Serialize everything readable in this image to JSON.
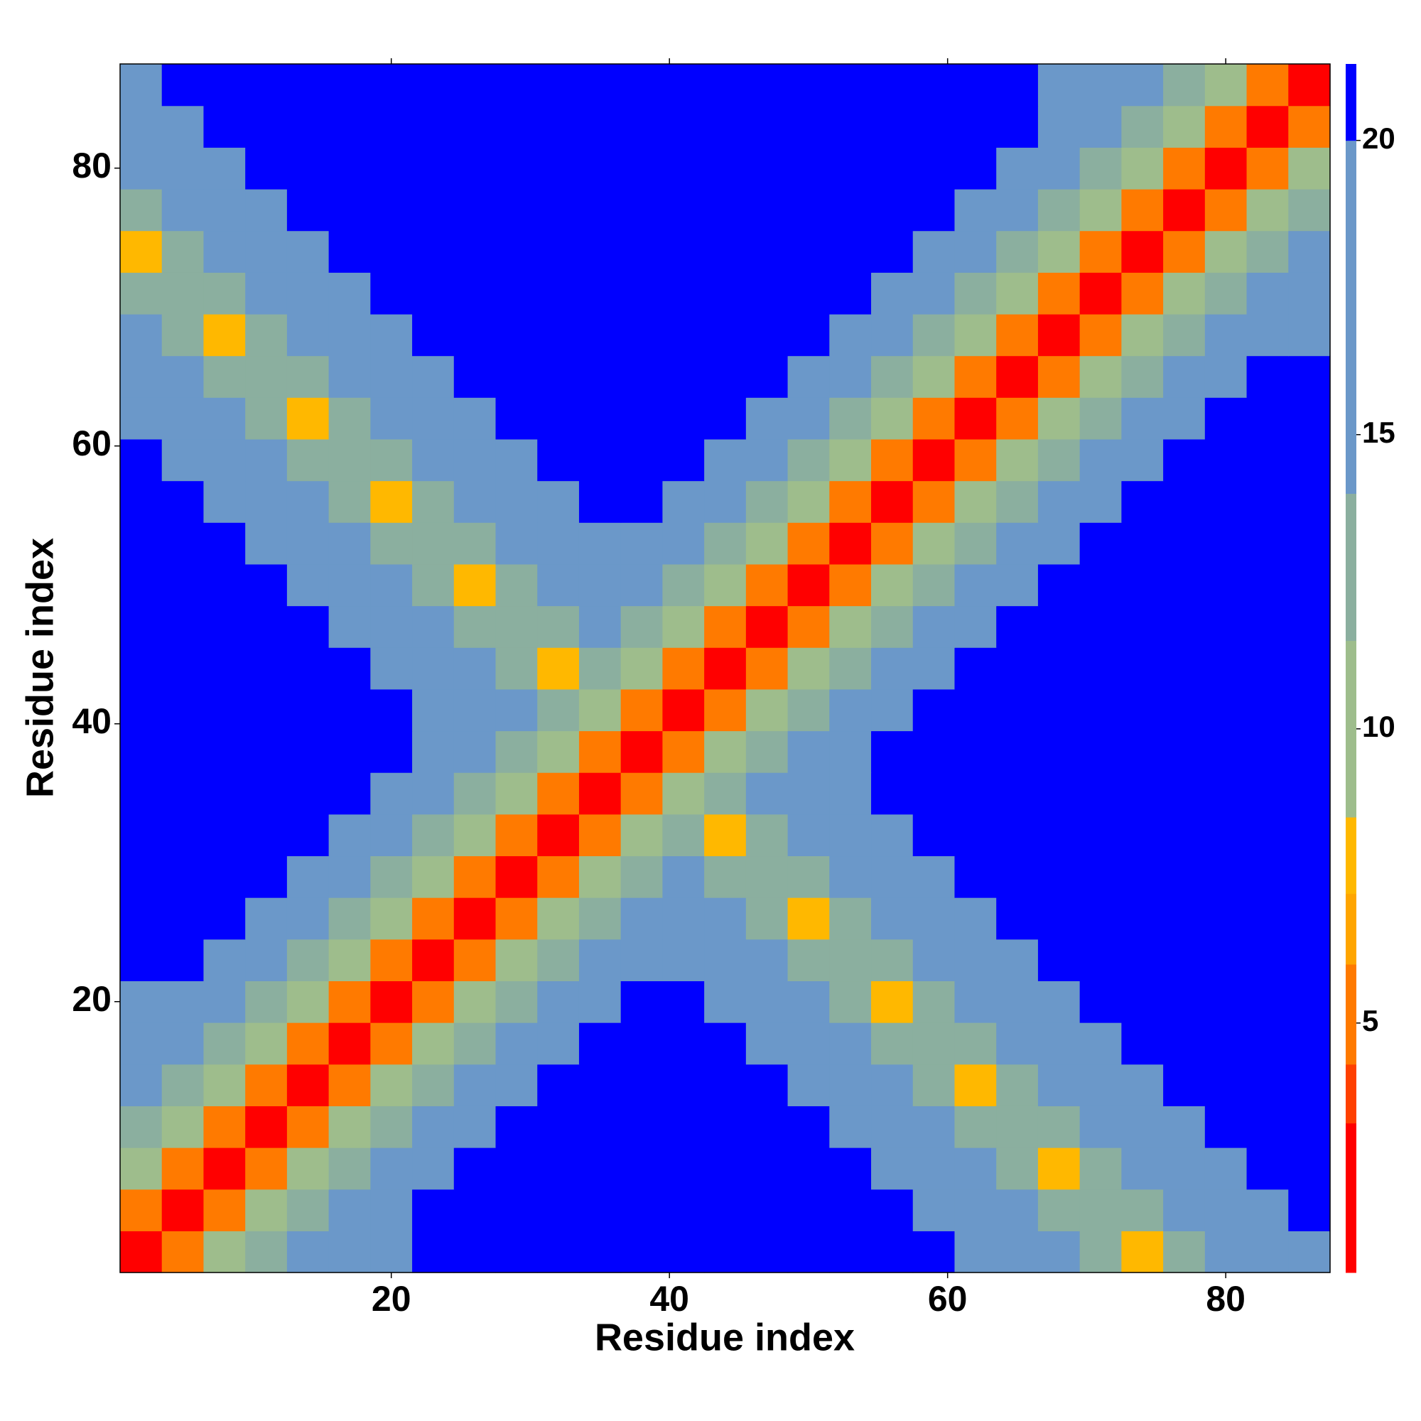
{
  "chart_data": {
    "type": "heatmap",
    "xlabel": "Residue index",
    "ylabel": "Residue index",
    "x": [
      2,
      5,
      8,
      11,
      14,
      17,
      20,
      23,
      26,
      29,
      32,
      35,
      38,
      41,
      44,
      47,
      50,
      53,
      56,
      59,
      62,
      65,
      68,
      71,
      74,
      77,
      80,
      83,
      86
    ],
    "y": [
      2,
      5,
      8,
      11,
      14,
      17,
      20,
      23,
      26,
      29,
      32,
      35,
      38,
      41,
      44,
      47,
      50,
      53,
      56,
      59,
      62,
      65,
      68,
      71,
      74,
      77,
      80,
      83,
      86
    ],
    "z": [
      [
        1.5,
        5,
        9.5,
        12,
        15,
        15,
        15,
        22,
        22,
        22,
        22,
        22,
        22,
        22,
        22,
        22,
        22,
        22,
        22,
        22,
        19,
        17,
        15,
        13,
        8,
        13,
        15,
        17,
        19
      ],
      [
        5,
        1.5,
        5,
        9.5,
        12,
        15,
        15,
        22,
        22,
        22,
        22,
        22,
        22,
        22,
        22,
        22,
        22,
        22,
        22,
        19,
        17,
        15,
        13,
        12,
        13,
        15,
        17,
        19,
        22
      ],
      [
        9.5,
        5,
        1.5,
        5,
        9.5,
        12,
        15,
        18,
        22,
        22,
        22,
        22,
        22,
        22,
        22,
        22,
        22,
        22,
        19,
        17,
        15,
        13,
        8,
        13,
        15,
        17,
        19,
        22,
        22
      ],
      [
        12,
        9.5,
        5,
        1.5,
        5,
        9.5,
        12,
        15,
        18,
        22,
        22,
        22,
        22,
        22,
        22,
        22,
        22,
        19,
        17,
        15,
        13,
        12,
        13,
        15,
        17,
        19,
        22,
        22,
        22
      ],
      [
        15,
        12,
        9.5,
        5,
        1.5,
        5,
        9.5,
        12,
        15,
        18,
        22,
        22,
        22,
        22,
        22,
        22,
        19,
        17,
        15,
        13,
        8,
        13,
        15,
        17,
        19,
        22,
        22,
        22,
        22
      ],
      [
        15,
        15,
        12,
        9.5,
        5,
        1.5,
        5,
        9.5,
        12,
        15,
        18,
        22,
        22,
        22,
        22,
        19,
        17,
        15,
        13,
        12,
        13,
        15,
        17,
        19,
        22,
        22,
        22,
        22,
        22
      ],
      [
        15,
        15,
        15,
        12,
        9.5,
        5,
        1.5,
        5,
        9.5,
        12,
        15,
        18,
        22,
        22,
        19,
        17,
        15,
        13,
        8,
        13,
        15,
        17,
        19,
        22,
        22,
        22,
        22,
        22,
        22
      ],
      [
        22,
        22,
        18,
        15,
        12,
        9.5,
        5,
        1.5,
        5,
        9.5,
        12,
        15,
        18,
        19,
        17,
        15,
        13,
        12,
        13,
        15,
        17,
        19,
        22,
        22,
        22,
        22,
        22,
        22,
        22
      ],
      [
        22,
        22,
        22,
        18,
        15,
        12,
        9.5,
        5,
        1.5,
        5,
        9.5,
        12,
        15,
        17,
        15,
        13,
        8,
        13,
        15,
        17,
        19,
        22,
        22,
        22,
        22,
        22,
        22,
        22,
        22
      ],
      [
        22,
        22,
        22,
        22,
        18,
        15,
        12,
        9.5,
        5,
        1.5,
        5,
        9.5,
        12,
        15,
        13,
        12,
        13,
        15,
        17,
        19,
        22,
        22,
        22,
        22,
        22,
        22,
        22,
        22,
        22
      ],
      [
        22,
        22,
        22,
        22,
        22,
        18,
        15,
        12,
        9.5,
        5,
        1.5,
        5,
        9.5,
        12,
        8,
        13,
        15,
        17,
        19,
        22,
        22,
        22,
        22,
        22,
        22,
        22,
        22,
        22,
        22
      ],
      [
        22,
        22,
        22,
        22,
        22,
        22,
        18,
        15,
        12,
        9.5,
        5,
        1.5,
        5,
        9.5,
        12,
        15,
        17,
        19,
        22,
        22,
        22,
        22,
        22,
        22,
        22,
        22,
        22,
        22,
        22
      ],
      [
        22,
        22,
        22,
        22,
        22,
        22,
        22,
        18,
        15,
        12,
        9.5,
        5,
        1.5,
        5,
        9.5,
        12,
        15,
        18,
        22,
        22,
        22,
        22,
        22,
        22,
        22,
        22,
        22,
        22,
        22
      ],
      [
        22,
        22,
        22,
        22,
        22,
        22,
        22,
        19,
        17,
        15,
        12,
        9.5,
        5,
        1.5,
        5,
        9.5,
        12,
        15,
        18,
        22,
        22,
        22,
        22,
        22,
        22,
        22,
        22,
        22,
        22
      ],
      [
        22,
        22,
        22,
        22,
        22,
        22,
        19,
        17,
        15,
        13,
        8,
        12,
        9.5,
        5,
        1.5,
        5,
        9.5,
        12,
        15,
        18,
        22,
        22,
        22,
        22,
        22,
        22,
        22,
        22,
        22
      ],
      [
        22,
        22,
        22,
        22,
        22,
        19,
        17,
        15,
        13,
        12,
        13,
        15,
        12,
        9.5,
        5,
        1.5,
        5,
        9.5,
        12,
        15,
        18,
        22,
        22,
        22,
        22,
        22,
        22,
        22,
        22
      ],
      [
        22,
        22,
        22,
        22,
        19,
        17,
        15,
        13,
        8,
        13,
        15,
        17,
        15,
        12,
        9.5,
        5,
        1.5,
        5,
        9.5,
        12,
        15,
        18,
        22,
        22,
        22,
        22,
        22,
        22,
        22
      ],
      [
        22,
        22,
        22,
        19,
        17,
        15,
        13,
        12,
        13,
        15,
        17,
        19,
        18,
        15,
        12,
        9.5,
        5,
        1.5,
        5,
        9.5,
        12,
        15,
        18,
        22,
        22,
        22,
        22,
        22,
        22
      ],
      [
        22,
        22,
        19,
        17,
        15,
        13,
        8,
        13,
        15,
        17,
        19,
        22,
        22,
        18,
        15,
        12,
        9.5,
        5,
        1.5,
        5,
        9.5,
        12,
        15,
        18,
        22,
        22,
        22,
        22,
        22
      ],
      [
        22,
        19,
        17,
        15,
        13,
        12,
        13,
        15,
        17,
        19,
        22,
        22,
        22,
        22,
        18,
        15,
        12,
        9.5,
        5,
        1.5,
        5,
        9.5,
        12,
        15,
        18,
        22,
        22,
        22,
        22
      ],
      [
        19,
        17,
        15,
        13,
        8,
        13,
        15,
        17,
        19,
        22,
        22,
        22,
        22,
        22,
        22,
        18,
        15,
        12,
        9.5,
        5,
        1.5,
        5,
        9.5,
        12,
        15,
        18,
        22,
        22,
        22
      ],
      [
        17,
        15,
        13,
        12,
        13,
        15,
        17,
        19,
        22,
        22,
        22,
        22,
        22,
        22,
        22,
        22,
        18,
        15,
        12,
        9.5,
        5,
        1.5,
        5,
        9.5,
        12,
        15,
        18,
        22,
        22
      ],
      [
        15,
        13,
        8,
        13,
        15,
        17,
        19,
        22,
        22,
        22,
        22,
        22,
        22,
        22,
        22,
        22,
        22,
        18,
        15,
        12,
        9.5,
        5,
        1.5,
        5,
        9.5,
        12,
        15,
        15,
        15
      ],
      [
        13,
        12,
        13,
        15,
        17,
        19,
        22,
        22,
        22,
        22,
        22,
        22,
        22,
        22,
        22,
        22,
        22,
        22,
        18,
        15,
        12,
        9.5,
        5,
        1.5,
        5,
        9.5,
        12,
        15,
        15
      ],
      [
        8,
        13,
        15,
        17,
        19,
        22,
        22,
        22,
        22,
        22,
        22,
        22,
        22,
        22,
        22,
        22,
        22,
        22,
        22,
        18,
        15,
        12,
        9.5,
        5,
        1.5,
        5,
        9.5,
        12,
        15
      ],
      [
        13,
        15,
        17,
        19,
        22,
        22,
        22,
        22,
        22,
        22,
        22,
        22,
        22,
        22,
        22,
        22,
        22,
        22,
        22,
        22,
        18,
        15,
        12,
        9.5,
        5,
        1.5,
        5,
        9.5,
        12
      ],
      [
        15,
        17,
        19,
        22,
        22,
        22,
        22,
        22,
        22,
        22,
        22,
        22,
        22,
        22,
        22,
        22,
        22,
        22,
        22,
        22,
        22,
        18,
        15,
        12,
        9.5,
        5,
        1.5,
        5,
        9.5
      ],
      [
        17,
        19,
        22,
        22,
        22,
        22,
        22,
        22,
        22,
        22,
        22,
        22,
        22,
        22,
        22,
        22,
        22,
        22,
        22,
        22,
        22,
        22,
        15,
        15,
        12,
        9.5,
        5,
        1.5,
        5
      ],
      [
        19,
        22,
        22,
        22,
        22,
        22,
        22,
        22,
        22,
        22,
        22,
        22,
        22,
        22,
        22,
        22,
        22,
        22,
        22,
        22,
        22,
        22,
        15,
        15,
        15,
        12,
        9.5,
        5,
        1.5
      ]
    ],
    "xlim": [
      0.5,
      87.5
    ],
    "ylim": [
      0.5,
      87.5
    ],
    "xticks": [
      20,
      40,
      60,
      80
    ],
    "yticks": [
      20,
      40,
      60,
      80
    ],
    "colorbar": {
      "levels": [
        0.76,
        3.3,
        4.3,
        6.0,
        7.2,
        8.5,
        11.5,
        14,
        20,
        21.3
      ],
      "colors": [
        "#ff0000",
        "#ff4000",
        "#ff7a00",
        "#ffa500",
        "#ffb800",
        "#9ebd8c",
        "#8baf9f",
        "#6b98c9",
        "#0000ff"
      ],
      "ticks": [
        5,
        10,
        15,
        20
      ]
    }
  }
}
